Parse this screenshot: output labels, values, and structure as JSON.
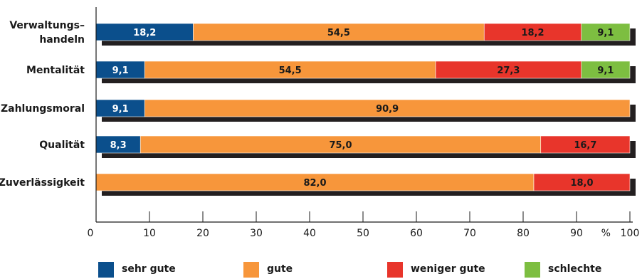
{
  "chart_data": {
    "type": "bar",
    "orientation": "horizontal",
    "stacked": true,
    "categories": [
      [
        "Verwaltungs–",
        "handeln"
      ],
      [
        "Mentalität"
      ],
      [
        "Zahlungsmoral"
      ],
      [
        "Qualität"
      ],
      [
        "Zuverlässigkeit"
      ]
    ],
    "series": [
      {
        "name": "sehr gute",
        "color": "#0b4f8c",
        "label_color": "#ffffff",
        "values": [
          18.2,
          9.1,
          9.1,
          8.3,
          0
        ]
      },
      {
        "name": "gute",
        "color": "#f7963b",
        "label_color": "#1a1a1a",
        "values": [
          54.5,
          54.5,
          90.9,
          75.0,
          82.0
        ]
      },
      {
        "name": "weniger gute",
        "color": "#e8352b",
        "label_color": "#1a1a1a",
        "values": [
          18.2,
          27.3,
          0,
          16.7,
          18.0
        ]
      },
      {
        "name": "schlechte",
        "color": "#7dbe41",
        "label_color": "#1a1a1a",
        "values": [
          9.1,
          9.1,
          0,
          0,
          0
        ]
      }
    ],
    "value_labels": [
      [
        "18,2",
        "54,5",
        "18,2",
        "9,1"
      ],
      [
        "9,1",
        "54,5",
        "27,3",
        "9,1"
      ],
      [
        "9,1",
        "90,9",
        "",
        ""
      ],
      [
        "8,3",
        "75,0",
        "16,7",
        ""
      ],
      [
        "",
        "82,0",
        "18,0",
        ""
      ]
    ],
    "xlim": [
      0,
      100
    ],
    "xticks": [
      0,
      10,
      20,
      30,
      40,
      50,
      60,
      70,
      80,
      90,
      100
    ],
    "xtick_labels": [
      "0",
      "10",
      "20",
      "30",
      "40",
      "50",
      "60",
      "70",
      "80",
      "90",
      "100"
    ],
    "xunit_label": "%",
    "shadow_color": "#231f20",
    "legend_position": "bottom",
    "grid": false
  }
}
